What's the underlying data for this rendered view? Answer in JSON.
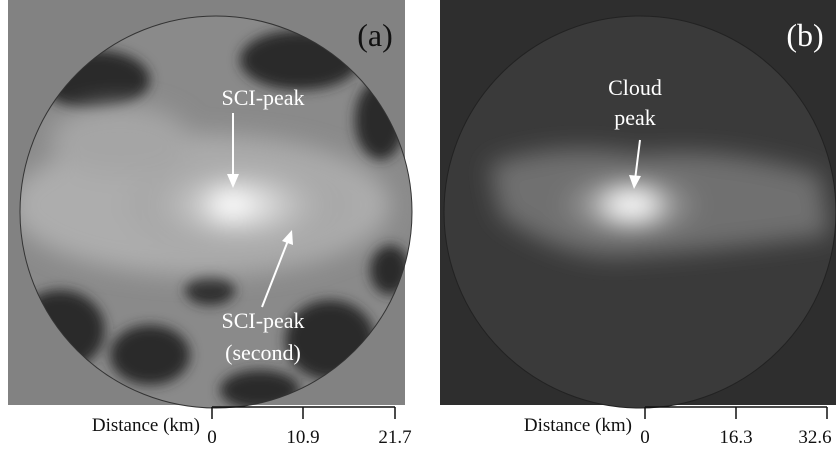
{
  "panels": [
    {
      "label": "(a)",
      "annotations": [
        "SCI-peak",
        "SCI-peak",
        "(second)"
      ],
      "scale": {
        "title": "Distance (km)",
        "ticks": [
          "0",
          "10.9",
          "21.7"
        ]
      }
    },
    {
      "label": "(b)",
      "annotations": [
        "Cloud",
        "peak"
      ],
      "scale": {
        "title": "Distance (km)",
        "ticks": [
          "0",
          "16.3",
          "32.6"
        ]
      }
    }
  ]
}
